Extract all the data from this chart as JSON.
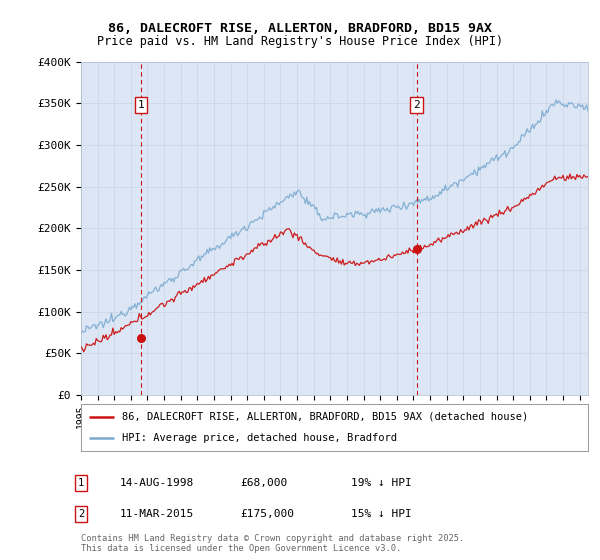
{
  "title_line1": "86, DALECROFT RISE, ALLERTON, BRADFORD, BD15 9AX",
  "title_line2": "Price paid vs. HM Land Registry's House Price Index (HPI)",
  "legend_entry1": "86, DALECROFT RISE, ALLERTON, BRADFORD, BD15 9AX (detached house)",
  "legend_entry2": "HPI: Average price, detached house, Bradford",
  "annotation1_date": "14-AUG-1998",
  "annotation1_price": "£68,000",
  "annotation1_hpi": "19% ↓ HPI",
  "annotation1_year": 1998.62,
  "annotation2_date": "11-MAR-2015",
  "annotation2_price": "£175,000",
  "annotation2_hpi": "15% ↓ HPI",
  "annotation2_year": 2015.19,
  "ylabel_ticks": [
    "£0",
    "£50K",
    "£100K",
    "£150K",
    "£200K",
    "£250K",
    "£300K",
    "£350K",
    "£400K"
  ],
  "ytick_values": [
    0,
    50000,
    100000,
    150000,
    200000,
    250000,
    300000,
    350000,
    400000
  ],
  "sale1_price": 68000,
  "sale2_price": 175000,
  "footer": "Contains HM Land Registry data © Crown copyright and database right 2025.\nThis data is licensed under the Open Government Licence v3.0.",
  "background_color": "#dce6f5",
  "hpi_color": "#7aaad0",
  "price_color": "#cc1111",
  "vline_color": "#cc1111",
  "xmin": 1995,
  "xmax": 2025.5,
  "ymin": 0,
  "ymax": 400000
}
